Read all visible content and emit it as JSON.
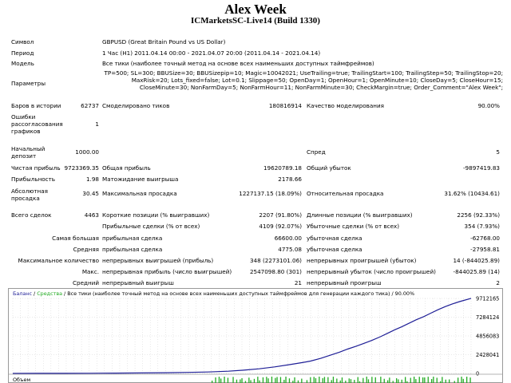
{
  "header": {
    "title": "Alex Week",
    "subtitle": "ICMarketsSC-Live14 (Build 1330)"
  },
  "info": {
    "symbol_label": "Символ",
    "symbol_value": "GBPUSD (Great Britain Pound vs US Dollar)",
    "period_label": "Период",
    "period_value": "1 Час (H1) 2011.04.14 00:00 - 2021.04.07 20:00 (2011.04.14 - 2021.04.14)",
    "model_label": "Модель",
    "model_value": "Все тики (наиболее точный метод на основе всех наименьших доступных таймфреймов)",
    "params_label": "Параметры",
    "params_value": "TP=500; SL=300; BBUSize=30; BBUSizepip=10; Magic=10042021; UseTrailing=true; TrailingStart=100; TrailingStep=50; TrailingStop=20; MaxRisk=20; Lots_fixed=false; Lot=0.1; Slippage=50; OpenDay=1; OpenHour=1; OpenMinute=10; CloseDay=5; CloseHour=15; CloseMinute=30; NonFarmDay=5; NonFarmHour=11; NonFarmMinute=30; CheckMargin=true; Order_Comment=\"Alex Week\";"
  },
  "stats": {
    "bars_label": "Баров в истории",
    "bars_value": "62737",
    "ticks_label": "Смоделировано тиков",
    "ticks_value": "180816914",
    "quality_label": "Качество моделирования",
    "quality_value": "90.00%",
    "errors_label": "Ошибки рассогласования графиков",
    "errors_value": "1",
    "deposit_label": "Начальный депозит",
    "deposit_value": "1000.00",
    "spread_label": "Спред",
    "spread_value": "5",
    "netprofit_label": "Чистая прибыль",
    "netprofit_value": "9723369.35",
    "grossprofit_label": "Общая прибыль",
    "grossprofit_value": "19620789.18",
    "grossloss_label": "Общий убыток",
    "grossloss_value": "-9897419.83",
    "profitfactor_label": "Прибыльность",
    "profitfactor_value": "1.98",
    "expected_label": "Матожидание выигрыша",
    "expected_value": "2178.66",
    "absdd_label": "Абсолютная просадка",
    "absdd_value": "30.45",
    "maxdd_label": "Максимальная просадка",
    "maxdd_value": "1227137.15 (18.09%)",
    "reldd_label": "Относительная просадка",
    "reldd_value": "31.62% (10434.61)",
    "trades_label": "Всего сделок",
    "trades_value": "4463",
    "short_label": "Короткие позиции (% выигравших)",
    "short_value": "2207 (91.80%)",
    "long_label": "Длинные позиции (% выигравших)",
    "long_value": "2256 (92.33%)",
    "profittrades_label": "Прибыльные сделки (% от всех)",
    "profittrades_value": "4109 (92.07%)",
    "losstrades_label": "Убыточные сделки (% от всех)",
    "losstrades_value": "354 (7.93%)",
    "largest_label": "Самая большая",
    "largest_profit_label": "прибыльная сделка",
    "largest_profit_value": "66600.00",
    "largest_loss_label": "убыточная сделка",
    "largest_loss_value": "-62768.00",
    "average_label": "Средняя",
    "average_profit_label": "прибыльная сделка",
    "average_profit_value": "4775.08",
    "average_loss_label": "убыточная сделка",
    "average_loss_value": "-27958.81",
    "maxcount_label": "Максимальное количество",
    "maxcount_wins_label": "непрерывных выигрышей (прибыль)",
    "maxcount_wins_value": "348 (2273101.06)",
    "maxcount_losses_label": "непрерывных проигрышей (убыток)",
    "maxcount_losses_value": "14 (-844025.89)",
    "maxprofit_label": "Макс.",
    "maxprofit_wins_label": "непрерывная прибыль (число выигрышей)",
    "maxprofit_wins_value": "2547098.80 (301)",
    "maxprofit_losses_label": "непрерывный убыток (число проигрышей)",
    "maxprofit_losses_value": "-844025.89 (14)",
    "avgcons_label": "Средний",
    "avgcons_wins_label": "непрерывный выигрыш",
    "avgcons_wins_value": "21",
    "avgcons_losses_label": "непрерывный проигрыш",
    "avgcons_losses_value": "2"
  },
  "chart_data": {
    "type": "line",
    "legend": {
      "balance": "Баланс",
      "sep1": " / ",
      "equity": "Средства",
      "rest": " / Все тики (наиболее точный метод на основе всех наименьших доступных таймфреймов для генерации каждого тика) / 90.00%"
    },
    "ylim": [
      0,
      9712165
    ],
    "ytick_labels": [
      "9712165",
      "7284124",
      "4856083",
      "2428041",
      "0"
    ],
    "volume_label": "Объем",
    "line_color": "#1e1e96",
    "volume_color": "#22aa22",
    "balance_points": [
      [
        0,
        1000
      ],
      [
        250,
        8000
      ],
      [
        500,
        15000
      ],
      [
        750,
        25000
      ],
      [
        1000,
        40000
      ],
      [
        1250,
        60000
      ],
      [
        1500,
        90000
      ],
      [
        1700,
        130000
      ],
      [
        1900,
        190000
      ],
      [
        2100,
        290000
      ],
      [
        2250,
        420000
      ],
      [
        2400,
        600000
      ],
      [
        2550,
        850000
      ],
      [
        2700,
        1150000
      ],
      [
        2820,
        1400000
      ],
      [
        2900,
        1600000
      ],
      [
        3000,
        1950000
      ],
      [
        3100,
        2400000
      ],
      [
        3180,
        2750000
      ],
      [
        3260,
        3150000
      ],
      [
        3340,
        3500000
      ],
      [
        3420,
        3900000
      ],
      [
        3500,
        4300000
      ],
      [
        3580,
        4750000
      ],
      [
        3650,
        5200000
      ],
      [
        3720,
        5650000
      ],
      [
        3790,
        6050000
      ],
      [
        3860,
        6500000
      ],
      [
        3930,
        6950000
      ],
      [
        4000,
        7350000
      ],
      [
        4070,
        7800000
      ],
      [
        4140,
        8250000
      ],
      [
        4210,
        8650000
      ],
      [
        4280,
        9000000
      ],
      [
        4350,
        9300000
      ],
      [
        4463,
        9724369
      ]
    ],
    "x_range": [
      0,
      4463
    ]
  }
}
